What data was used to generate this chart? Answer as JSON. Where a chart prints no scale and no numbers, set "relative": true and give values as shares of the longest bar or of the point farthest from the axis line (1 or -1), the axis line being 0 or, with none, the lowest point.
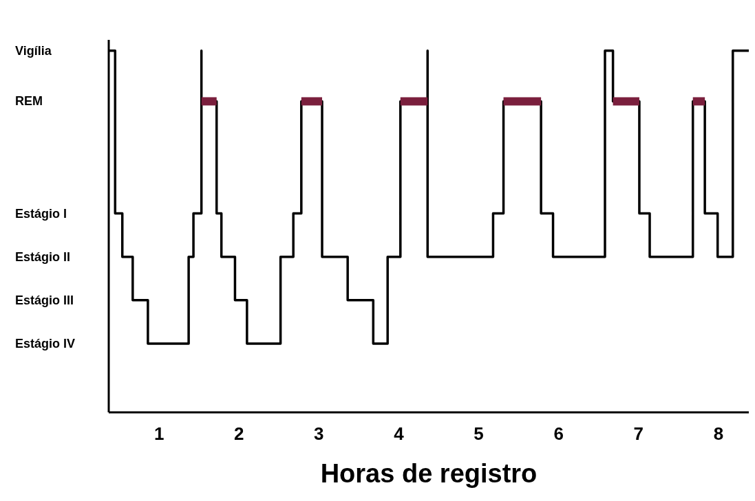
{
  "chart_data": {
    "type": "step",
    "xlabel": "Horas de registro",
    "relative": true,
    "xlim": [
      0.37,
      8.38
    ],
    "xticks": [
      1,
      2,
      3,
      4,
      5,
      6,
      7,
      8
    ],
    "annotations": [
      "Vigília",
      "REM",
      "Estágio I",
      "Estágio II",
      "Estágio III",
      "Estágio IV"
    ],
    "marker": "none",
    "series": [
      {
        "color": "#000000",
        "x": [
          0.37,
          0.45,
          0.54,
          0.67,
          0.86,
          1.37,
          1.43,
          1.53,
          1.53,
          1.72,
          1.78,
          1.95,
          2.1,
          2.52,
          2.68,
          2.78,
          3.04,
          3.36,
          3.68,
          3.86,
          4.02,
          4.36,
          4.36,
          5.18,
          5.31,
          5.78,
          5.93,
          6.58,
          6.68,
          7.01,
          7.14,
          7.68,
          7.83,
          7.99,
          8.18,
          8.38
        ],
        "values": [
          1,
          0.55,
          0.43,
          0.31,
          0.19,
          0.43,
          0.55,
          1,
          0.86,
          0.55,
          0.43,
          0.31,
          0.19,
          0.43,
          0.55,
          0.86,
          0.43,
          0.31,
          0.19,
          0.43,
          0.86,
          1,
          0.43,
          0.55,
          0.86,
          0.55,
          0.43,
          1,
          0.86,
          0.55,
          0.43,
          0.86,
          0.55,
          0.43,
          1,
          1
        ]
      },
      {
        "type": "line",
        "color": "#7a1f3d",
        "x": [
          1.53,
          1.72
        ],
        "values": [
          0.86,
          0.86
        ]
      },
      {
        "type": "line",
        "color": "#7a1f3d",
        "x": [
          2.78,
          3.04
        ],
        "values": [
          0.86,
          0.86
        ]
      },
      {
        "type": "line",
        "color": "#7a1f3d",
        "x": [
          4.02,
          4.36
        ],
        "values": [
          0.86,
          0.86
        ]
      },
      {
        "type": "line",
        "color": "#7a1f3d",
        "x": [
          5.31,
          5.78
        ],
        "values": [
          0.86,
          0.86
        ]
      },
      {
        "type": "line",
        "color": "#7a1f3d",
        "x": [
          6.68,
          7.01
        ],
        "values": [
          0.86,
          0.86
        ]
      },
      {
        "type": "line",
        "color": "#7a1f3d",
        "x": [
          7.68,
          7.83
        ],
        "values": [
          0.86,
          0.86
        ]
      }
    ]
  }
}
